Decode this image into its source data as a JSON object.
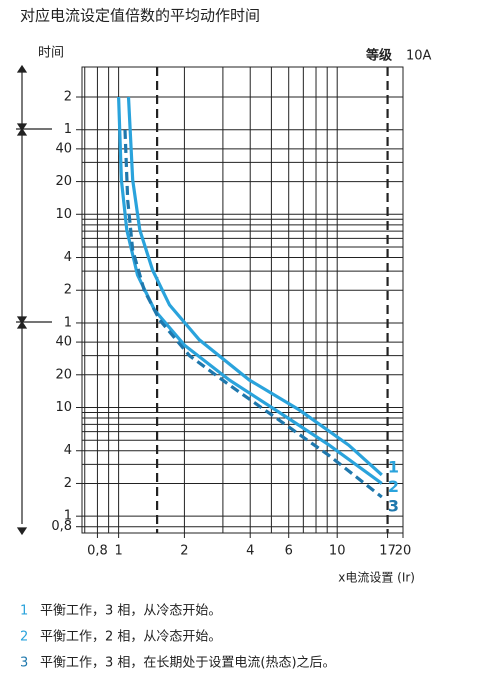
{
  "chart_data": {
    "type": "line",
    "title": "对应电流设定值倍数的平均动作时间",
    "y_label": "时间",
    "grade_label": "等级",
    "grade": "10A",
    "x_label": "x电流设置 (Ir)",
    "xlog": true,
    "ylog": true,
    "xlim": [
      0.68,
      20
    ],
    "ylim": [
      0.7,
      13600
    ],
    "xticks": [
      {
        "value": 0.8,
        "label": "0,8"
      },
      1,
      2,
      4,
      6,
      10,
      17,
      20
    ],
    "yticks": [
      {
        "value": 7200,
        "label": "2"
      },
      {
        "value": 3600,
        "label": "1"
      },
      {
        "value": 2400,
        "label": "40"
      },
      {
        "value": 1200,
        "label": "20"
      },
      {
        "value": 600,
        "label": "10"
      },
      {
        "value": 240,
        "label": "4"
      },
      {
        "value": 120,
        "label": "2"
      },
      {
        "value": 60,
        "label": "1"
      },
      40,
      20,
      10,
      4,
      2,
      1,
      {
        "value": 0.8,
        "label": "0,8"
      }
    ],
    "xgrid": [
      0.7,
      0.8,
      0.9,
      1,
      2,
      3,
      4,
      5,
      6,
      7,
      8,
      9,
      10,
      20
    ],
    "ygrid": [
      0.8,
      1,
      2,
      3,
      4,
      5,
      6,
      7,
      8,
      9,
      10,
      20,
      30,
      40,
      60,
      120,
      180,
      240,
      300,
      360,
      420,
      480,
      540,
      600,
      1200,
      1800,
      2400,
      3600,
      7200
    ],
    "dashed_x": [
      1.5,
      17
    ],
    "series": [
      {
        "name": "1",
        "color": "#2aa3dc",
        "dashed": false,
        "description": "平衡工作，3 相，从冷态开始。",
        "x": [
          1.11,
          1.16,
          1.25,
          1.43,
          1.71,
          2.34,
          3.96,
          6.7,
          11.3,
          16.0
        ],
        "values": [
          7200,
          1240,
          430,
          184,
          88,
          42,
          17.9,
          9.5,
          4.5,
          2.4
        ]
      },
      {
        "name": "2",
        "color": "#2aa3dc",
        "dashed": false,
        "description": "平衡工作，2 相，从冷态开始。",
        "x": [
          1.0,
          1.03,
          1.09,
          1.22,
          1.46,
          2.0,
          3.21,
          5.4,
          9.2,
          16.0
        ],
        "values": [
          7200,
          1240,
          430,
          166,
          79,
          37.5,
          17.9,
          9.1,
          4.5,
          2.0
        ]
      },
      {
        "name": "3",
        "color": "#1f78ad",
        "dashed": true,
        "description": "平衡工作，3 相，在长期处于设置电流(热态)之后。",
        "x": [
          1.07,
          1.1,
          1.16,
          1.31,
          1.54,
          2.11,
          3.21,
          5.4,
          9.2,
          16.0
        ],
        "values": [
          3580,
          810,
          280,
          120,
          64,
          30,
          16.1,
          7.7,
          3.6,
          1.5
        ]
      }
    ]
  }
}
